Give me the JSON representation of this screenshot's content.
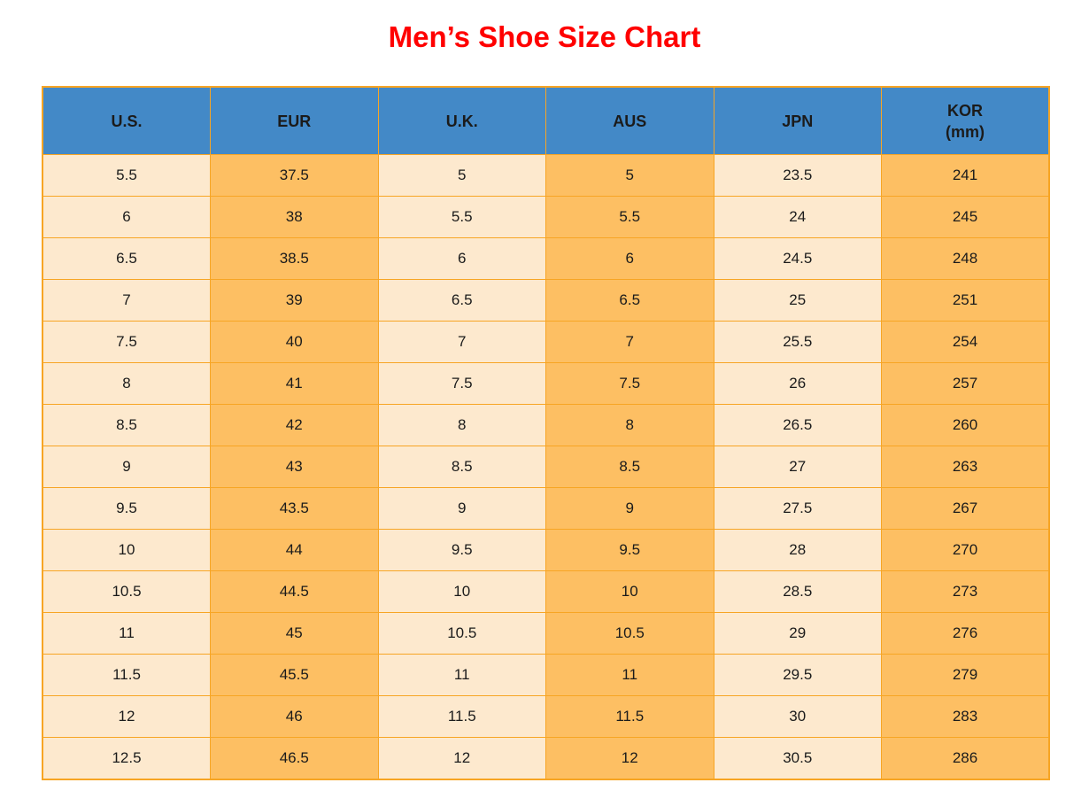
{
  "colors": {
    "title": "#ff0000",
    "header_bg": "#4389c7",
    "header_text": "#000000",
    "col_light": "#fde9ce",
    "col_orange": "#fdbf63",
    "border": "#f7a524",
    "cell_text": "#1b1b1b"
  },
  "chart_data": {
    "type": "table",
    "title": "Men’s Shoe Size Chart",
    "columns": [
      {
        "label": "U.S."
      },
      {
        "label": "EUR"
      },
      {
        "label": "U.K."
      },
      {
        "label": "AUS"
      },
      {
        "label": "JPN"
      },
      {
        "label": "KOR",
        "sublabel": "(mm)"
      }
    ],
    "rows": [
      [
        "5.5",
        "37.5",
        "5",
        "5",
        "23.5",
        "241"
      ],
      [
        "6",
        "38",
        "5.5",
        "5.5",
        "24",
        "245"
      ],
      [
        "6.5",
        "38.5",
        "6",
        "6",
        "24.5",
        "248"
      ],
      [
        "7",
        "39",
        "6.5",
        "6.5",
        "25",
        "251"
      ],
      [
        "7.5",
        "40",
        "7",
        "7",
        "25.5",
        "254"
      ],
      [
        "8",
        "41",
        "7.5",
        "7.5",
        "26",
        "257"
      ],
      [
        "8.5",
        "42",
        "8",
        "8",
        "26.5",
        "260"
      ],
      [
        "9",
        "43",
        "8.5",
        "8.5",
        "27",
        "263"
      ],
      [
        "9.5",
        "43.5",
        "9",
        "9",
        "27.5",
        "267"
      ],
      [
        "10",
        "44",
        "9.5",
        "9.5",
        "28",
        "270"
      ],
      [
        "10.5",
        "44.5",
        "10",
        "10",
        "28.5",
        "273"
      ],
      [
        "11",
        "45",
        "10.5",
        "10.5",
        "29",
        "276"
      ],
      [
        "11.5",
        "45.5",
        "11",
        "11",
        "29.5",
        "279"
      ],
      [
        "12",
        "46",
        "11.5",
        "11.5",
        "30",
        "283"
      ],
      [
        "12.5",
        "46.5",
        "12",
        "12",
        "30.5",
        "286"
      ]
    ]
  }
}
